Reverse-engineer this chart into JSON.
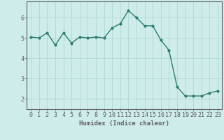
{
  "x": [
    0,
    1,
    2,
    3,
    4,
    5,
    6,
    7,
    8,
    9,
    10,
    11,
    12,
    13,
    14,
    15,
    16,
    17,
    18,
    19,
    20,
    21,
    22,
    23
  ],
  "y": [
    5.05,
    5.0,
    5.25,
    4.65,
    5.25,
    4.75,
    5.05,
    5.0,
    5.05,
    5.0,
    5.5,
    5.7,
    6.35,
    6.0,
    5.6,
    5.6,
    4.9,
    4.4,
    2.6,
    2.15,
    2.15,
    2.15,
    2.3,
    2.4
  ],
  "line_color": "#2e7d6e",
  "marker": "o",
  "markersize": 2.0,
  "linewidth": 1.0,
  "xlabel": "Humidex (Indice chaleur)",
  "xlabel_fontsize": 6.5,
  "xlim": [
    -0.5,
    23.5
  ],
  "ylim": [
    1.5,
    6.8
  ],
  "yticks": [
    2,
    3,
    4,
    5,
    6
  ],
  "xticks": [
    0,
    1,
    2,
    3,
    4,
    5,
    6,
    7,
    8,
    9,
    10,
    11,
    12,
    13,
    14,
    15,
    16,
    17,
    18,
    19,
    20,
    21,
    22,
    23
  ],
  "bg_color": "#ceecea",
  "grid_color": "#aed8d4",
  "tick_fontsize": 6,
  "axes_color": "#606060"
}
